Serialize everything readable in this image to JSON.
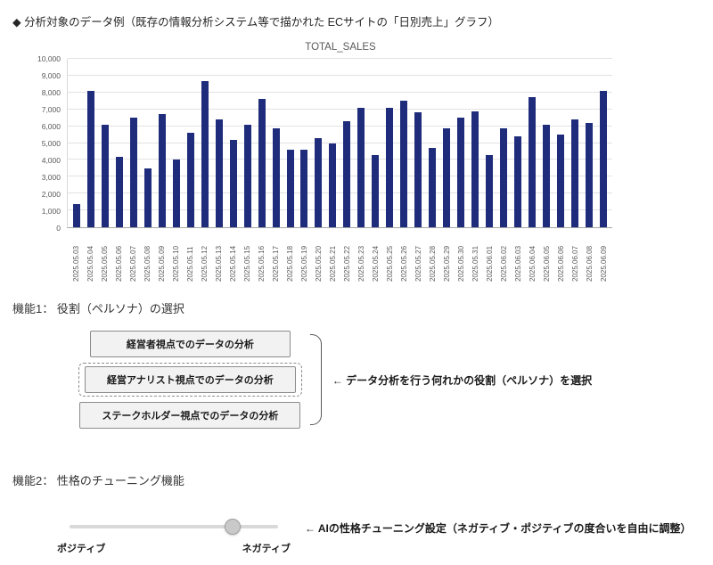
{
  "page": {
    "header": "◆ 分析対象のデータ例（既存の情報分析システム等で描かれた ECサイトの「日別売上」グラフ）"
  },
  "chart_data": {
    "type": "bar",
    "title": "TOTAL_SALES",
    "categories": [
      "2025.05.03",
      "2025.05.04",
      "2025.05.05",
      "2025.05.06",
      "2025.05.07",
      "2025.05.08",
      "2025.05.09",
      "2025.05.10",
      "2025.05.11",
      "2025.05.12",
      "2025.05.13",
      "2025.05.14",
      "2025.05.15",
      "2025.05.16",
      "2025.05.17",
      "2025.05.18",
      "2025.05.19",
      "2025.05.20",
      "2025.05.21",
      "2025.05.22",
      "2025.05.23",
      "2025.05.24",
      "2025.05.25",
      "2025.05.26",
      "2025.05.27",
      "2025.05.28",
      "2025.05.29",
      "2025.05.30",
      "2025.05.31",
      "2025.06.01",
      "2025.06.02",
      "2025.06.03",
      "2025.06.04",
      "2025.06.05",
      "2025.06.06",
      "2025.06.07",
      "2025.06.08",
      "2025.06.09"
    ],
    "values": [
      1400,
      8100,
      6100,
      4200,
      6500,
      3500,
      6700,
      4000,
      5600,
      8700,
      6400,
      5200,
      6100,
      7600,
      5900,
      4600,
      4600,
      5300,
      5000,
      6300,
      7100,
      4300,
      7100,
      7500,
      6800,
      4700,
      5900,
      6500,
      6900,
      4300,
      5900,
      5400,
      7700,
      6100,
      5500,
      6400,
      6200,
      8100
    ],
    "xlabel": "",
    "ylabel": "",
    "ylim": [
      0,
      10000
    ],
    "ytick_step": 1000,
    "grid": true,
    "legend": "none",
    "bar_color": "#1f2c7b"
  },
  "feature1": {
    "title": "機能1： 役割（ペルソナ）の選択",
    "buttons": [
      {
        "label": "経営者視点でのデータの分析",
        "selected": false
      },
      {
        "label": "経営アナリスト視点でのデータの分析",
        "selected": true
      },
      {
        "label": "ステークホルダー視点でのデータの分析",
        "selected": false
      }
    ],
    "annotation": "← データ分析を行う何れかの役割（ペルソナ）を選択"
  },
  "feature2": {
    "title": "機能2： 性格のチューニング機能",
    "slider": {
      "left_label": "ポジティブ",
      "right_label": "ネガティブ",
      "value_percent": 78
    },
    "annotation": "← AIの性格チューニング設定（ネガティブ・ポジティブの度合いを自由に調整）"
  }
}
